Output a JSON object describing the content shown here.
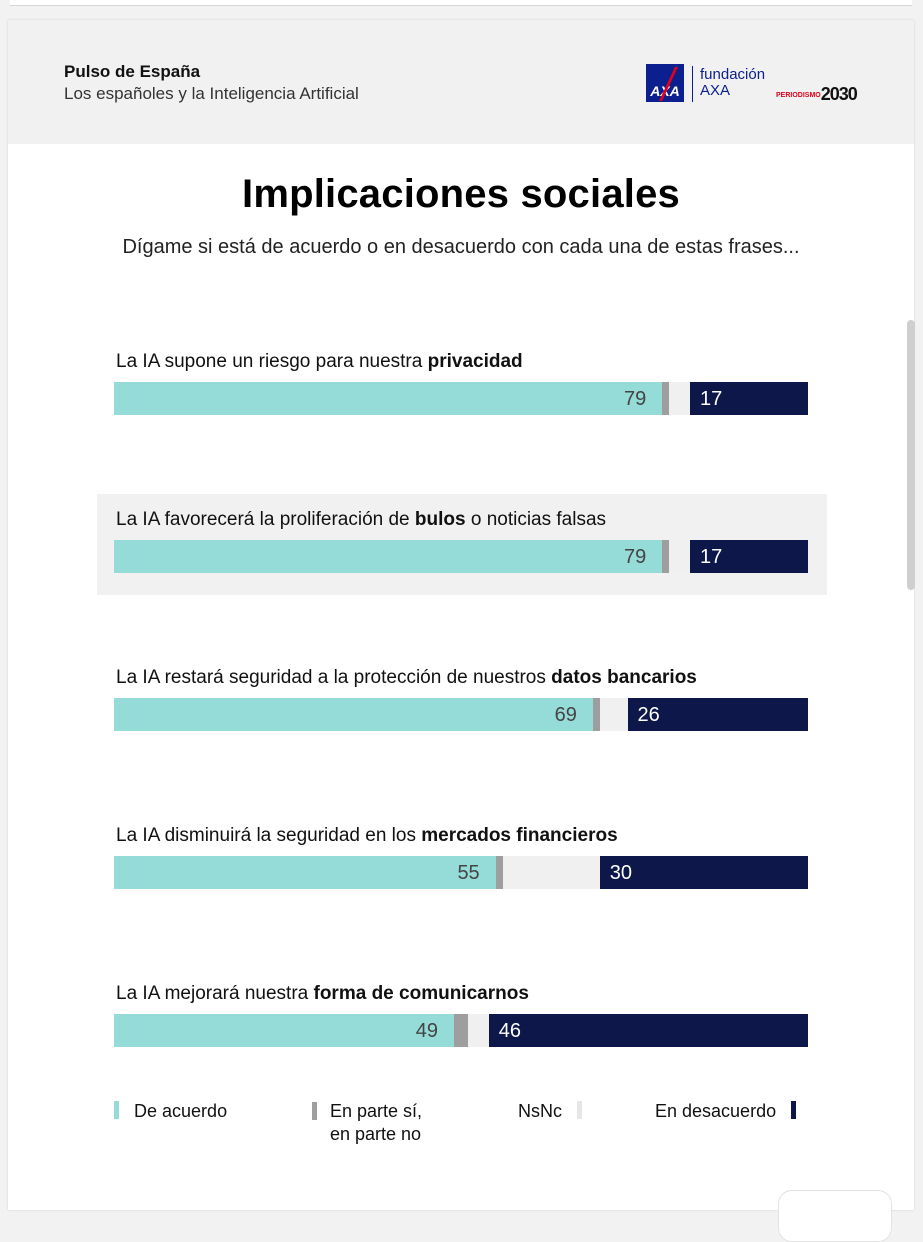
{
  "header": {
    "title": "Pulso de España",
    "subtitle": "Los españoles y la Inteligencia Artificial",
    "logo": {
      "axa": "AXA",
      "fundacion_line1": "fundación",
      "fundacion_line2": "AXA",
      "periodismo": "PERIODISMO",
      "year": "2030"
    }
  },
  "title": "Implicaciones sociales",
  "subtitle": "Dígame si está de acuerdo o en desacuerdo con cada una de estas frases...",
  "colors": {
    "agree": "#95dcd8",
    "part": "#9e9e9e",
    "nsnc": "#f0f0f0",
    "disagree": "#0e1749"
  },
  "chart_data": {
    "type": "bar",
    "orientation": "horizontal-stacked",
    "categories": [
      "La IA supone un riesgo para nuestra privacidad",
      "La IA favorecerá la proliferación de bulos o noticias falsas",
      "La IA restará seguridad a la protección de nuestros datos bancarios",
      "La IA disminuirá la seguridad en los mercados financieros",
      "La IA mejorará nuestra forma de comunicarnos"
    ],
    "category_parts": [
      {
        "pre": "La IA supone un riesgo para nuestra ",
        "bold": "privacidad",
        "post": ""
      },
      {
        "pre": "La IA favorecerá la proliferación de ",
        "bold": "bulos",
        "post": " o noticias falsas"
      },
      {
        "pre": "La IA restará seguridad a la protección de nuestros ",
        "bold": "datos bancarios",
        "post": ""
      },
      {
        "pre": "La IA disminuirá la seguridad en los ",
        "bold": "mercados financieros",
        "post": ""
      },
      {
        "pre": "La IA mejorará nuestra ",
        "bold": "forma de comunicarnos",
        "post": ""
      }
    ],
    "series": [
      {
        "name": "De acuerdo",
        "values": [
          79,
          79,
          69,
          55,
          49
        ]
      },
      {
        "name": "En parte sí, en parte no",
        "values": [
          1,
          1,
          1,
          1,
          2
        ]
      },
      {
        "name": "NsNc",
        "values": [
          3,
          3,
          4,
          14,
          3
        ]
      },
      {
        "name": "En desacuerdo",
        "values": [
          17,
          17,
          26,
          30,
          46
        ]
      }
    ],
    "value_labels_shown": [
      "De acuerdo",
      "En desacuerdo"
    ],
    "xlim": [
      0,
      100
    ],
    "highlighted_row": 1,
    "legend_position": "bottom"
  },
  "legend": [
    {
      "label": "De acuerdo"
    },
    {
      "label": "En parte sí, en parte no",
      "line1": "En parte sí,",
      "line2": "en parte no"
    },
    {
      "label": "NsNc"
    },
    {
      "label": "En desacuerdo"
    }
  ]
}
